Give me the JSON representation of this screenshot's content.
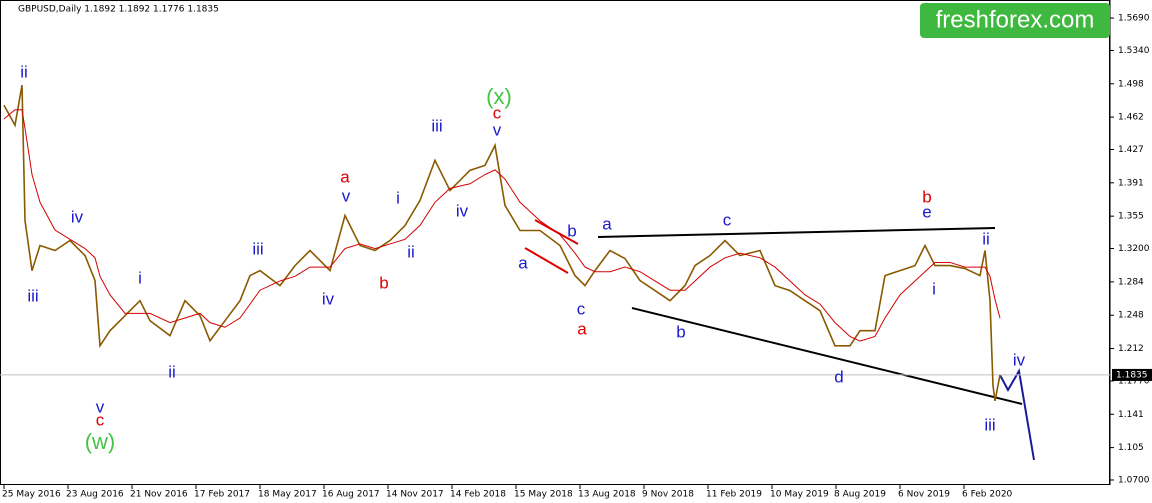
{
  "chart_data": {
    "type": "line",
    "title": "GBPUSD,Daily  1.1892 1.1892 1.1776 1.1835",
    "watermark": "freshforex.com",
    "x": [
      0,
      11,
      18,
      21,
      28,
      36,
      51,
      66,
      81,
      91,
      96,
      106,
      121,
      136,
      146,
      166,
      181,
      196,
      206,
      221,
      236,
      246,
      256,
      276,
      291,
      306,
      326,
      341,
      356,
      371,
      386,
      401,
      416,
      431,
      446,
      466,
      481,
      491,
      501,
      516,
      536,
      556,
      571,
      581,
      591,
      606,
      621,
      636,
      651,
      666,
      681,
      691,
      706,
      721,
      736,
      756,
      771,
      786,
      801,
      816,
      831,
      846,
      856,
      871,
      881,
      896,
      911,
      921,
      931,
      946,
      961,
      976,
      981,
      986,
      989,
      991,
      996
    ],
    "series": [
      {
        "name": "GBPUSD",
        "color": "#8a5a00",
        "values": [
          1.4748,
          1.4532,
          1.4965,
          1.3503,
          1.2962,
          1.3233,
          1.3179,
          1.3287,
          1.3125,
          1.2854,
          1.215,
          1.2313,
          1.2475,
          1.2637,
          1.2421,
          1.2259,
          1.2637,
          1.2475,
          1.2204,
          1.2421,
          1.2637,
          1.2908,
          1.2962,
          1.28,
          1.3016,
          1.3179,
          1.2962,
          1.3557,
          1.3233,
          1.3179,
          1.3287,
          1.3449,
          1.372,
          1.4153,
          1.3828,
          1.4045,
          1.4099,
          1.4315,
          1.3666,
          1.3395,
          1.3395,
          1.3233,
          1.2908,
          1.28,
          1.2962,
          1.3179,
          1.3092,
          1.2854,
          1.2746,
          1.2637,
          1.28,
          1.3016,
          1.3125,
          1.3287,
          1.3125,
          1.3179,
          1.28,
          1.2746,
          1.2637,
          1.2529,
          1.215,
          1.215,
          1.2313,
          1.2313,
          1.2908,
          1.2962,
          1.3016,
          1.3233,
          1.3016,
          1.3016,
          1.2984,
          1.2908,
          1.3179,
          1.2637,
          1.1717,
          1.1555,
          1.1835
        ]
      },
      {
        "name": "MA",
        "color": "#d40000",
        "values": [
          1.46,
          1.47,
          1.47,
          1.45,
          1.4,
          1.37,
          1.34,
          1.33,
          1.32,
          1.31,
          1.29,
          1.27,
          1.25,
          1.25,
          1.25,
          1.24,
          1.245,
          1.25,
          1.24,
          1.235,
          1.245,
          1.26,
          1.275,
          1.285,
          1.29,
          1.3,
          1.3,
          1.32,
          1.325,
          1.32,
          1.325,
          1.33,
          1.345,
          1.37,
          1.385,
          1.39,
          1.4,
          1.405,
          1.395,
          1.37,
          1.35,
          1.335,
          1.315,
          1.3,
          1.295,
          1.295,
          1.3,
          1.295,
          1.285,
          1.275,
          1.275,
          1.285,
          1.3,
          1.31,
          1.315,
          1.31,
          1.3,
          1.285,
          1.27,
          1.26,
          1.24,
          1.225,
          1.22,
          1.225,
          1.245,
          1.27,
          1.285,
          1.295,
          1.305,
          1.305,
          1.3,
          1.3,
          1.3,
          1.29,
          1.275,
          1.265,
          1.245
        ]
      }
    ],
    "current_price": 1.1835,
    "xlim": [
      -4,
      1106
    ],
    "xticks": [
      {
        "value": 0,
        "label": "25 May 2016"
      },
      {
        "value": 64,
        "label": "23 Aug 2016"
      },
      {
        "value": 128,
        "label": "21 Nov 2016"
      },
      {
        "value": 192,
        "label": "17 Feb 2017"
      },
      {
        "value": 256,
        "label": "18 May 2017"
      },
      {
        "value": 320,
        "label": "16 Aug 2017"
      },
      {
        "value": 384,
        "label": "14 Nov 2017"
      },
      {
        "value": 448,
        "label": "14 Feb 2018"
      },
      {
        "value": 512,
        "label": "15 May 2018"
      },
      {
        "value": 576,
        "label": "13 Aug 2018"
      },
      {
        "value": 640,
        "label": "9 Nov 2018"
      },
      {
        "value": 704,
        "label": "11 Feb 2019"
      },
      {
        "value": 768,
        "label": "10 May 2019"
      },
      {
        "value": 832,
        "label": "8 Aug 2019"
      },
      {
        "value": 896,
        "label": "6 Nov 2019"
      },
      {
        "value": 960,
        "label": "6 Feb 2020"
      }
    ],
    "ylim": [
      1.0646,
      1.5885
    ],
    "yticks": [
      {
        "value": 1.569,
        "label": "1.5690"
      },
      {
        "value": 1.534,
        "label": "1.5340"
      },
      1.498,
      1.462,
      1.427,
      1.391,
      1.355,
      {
        "value": 1.32,
        "label": "1.3200"
      },
      1.284,
      1.248,
      1.212,
      {
        "value": 1.177,
        "label": "1.1770"
      },
      1.141,
      1.105,
      {
        "value": 1.07,
        "label": "1.0700"
      }
    ],
    "annotations": [
      {
        "text": "ii",
        "color": "#1a1acc"
      },
      {
        "text": "iii",
        "color": "#1a1acc"
      },
      {
        "text": "iv",
        "color": "#1a1acc"
      },
      {
        "text": "v",
        "color": "#1a1acc"
      },
      {
        "text": "c",
        "color": "#e00000"
      },
      {
        "text": "(w)",
        "color": "#44c444"
      },
      {
        "text": "i",
        "color": "#1a1acc"
      },
      {
        "text": "ii",
        "color": "#1a1acc"
      },
      {
        "text": "iii",
        "color": "#1a1acc"
      },
      {
        "text": "iv",
        "color": "#1a1acc"
      },
      {
        "text": "a",
        "color": "#e00000"
      },
      {
        "text": "v",
        "color": "#1a1acc"
      },
      {
        "text": "b",
        "color": "#e00000"
      },
      {
        "text": "i",
        "color": "#1a1acc"
      },
      {
        "text": "ii",
        "color": "#1a1acc"
      },
      {
        "text": "iii",
        "color": "#1a1acc"
      },
      {
        "text": "iv",
        "color": "#1a1acc"
      },
      {
        "text": "(x)",
        "color": "#44c444"
      },
      {
        "text": "c",
        "color": "#e00000"
      },
      {
        "text": "v",
        "color": "#1a1acc"
      },
      {
        "text": "b",
        "color": "#1a1acc"
      },
      {
        "text": "a",
        "color": "#1a1acc"
      },
      {
        "text": "a",
        "color": "#1a1acc"
      },
      {
        "text": "c",
        "color": "#1a1acc"
      },
      {
        "text": "a",
        "color": "#e00000"
      },
      {
        "text": "b",
        "color": "#1a1acc"
      },
      {
        "text": "c",
        "color": "#1a1acc"
      },
      {
        "text": "d",
        "color": "#1a1acc"
      },
      {
        "text": "b",
        "color": "#e00000"
      },
      {
        "text": "e",
        "color": "#1a1acc"
      },
      {
        "text": "ii",
        "color": "#1a1acc"
      },
      {
        "text": "i",
        "color": "#1a1acc"
      },
      {
        "text": "iii",
        "color": "#1a1acc"
      },
      {
        "text": "iv",
        "color": "#1a1acc"
      }
    ]
  }
}
